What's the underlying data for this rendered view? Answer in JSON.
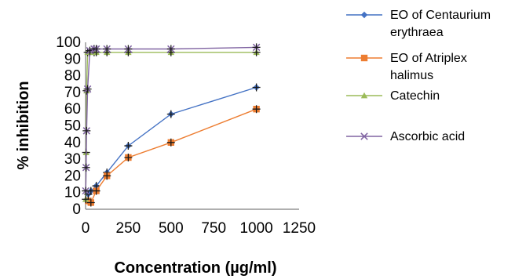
{
  "chart_data": {
    "type": "line",
    "title": "",
    "xlabel": "Concentration (µg/ml)",
    "ylabel": "% inhibition",
    "xlim": [
      0,
      1250
    ],
    "ylim": [
      0,
      100
    ],
    "xticks": [
      0,
      250,
      500,
      750,
      1000,
      1250
    ],
    "yticks": [
      0,
      10,
      20,
      30,
      40,
      50,
      60,
      70,
      80,
      90,
      100
    ],
    "grid": false,
    "legend_position": "right",
    "series": [
      {
        "name": "EO of Centaurium erythraea",
        "legend_lines": [
          "EO of Centaurium",
          "erythraea"
        ],
        "color": "#4472c4",
        "marker": "diamond",
        "x": [
          15.6,
          31.25,
          62.5,
          125,
          250,
          500,
          1000
        ],
        "y": [
          9,
          11,
          14,
          22,
          38,
          57,
          73
        ]
      },
      {
        "name": "EO of Atriplex halimus",
        "legend_lines": [
          "EO of Atriplex",
          "halimus"
        ],
        "color": "#ed7d31",
        "marker": "square",
        "x": [
          15.6,
          31.25,
          62.5,
          125,
          250,
          500,
          1000
        ],
        "y": [
          5,
          4,
          11,
          20,
          31,
          40,
          60
        ]
      },
      {
        "name": "Catechin",
        "legend_lines": [
          "Catechin"
        ],
        "color": "#9bbb59",
        "marker": "triangle",
        "x": [
          1,
          3,
          6,
          12,
          25,
          50,
          62.5,
          125,
          250,
          500,
          1000
        ],
        "y": [
          6,
          34,
          71,
          94,
          94,
          94,
          94,
          94,
          94,
          94,
          94
        ]
      },
      {
        "name": "Ascorbic acid",
        "legend_lines": [
          "Ascorbic acid"
        ],
        "color": "#8064a2",
        "marker": "x",
        "x": [
          1,
          3,
          6,
          12,
          25,
          50,
          62.5,
          125,
          250,
          500,
          1000
        ],
        "y": [
          11,
          25,
          47,
          72,
          95,
          96,
          96,
          96,
          96,
          96,
          97
        ]
      }
    ]
  }
}
